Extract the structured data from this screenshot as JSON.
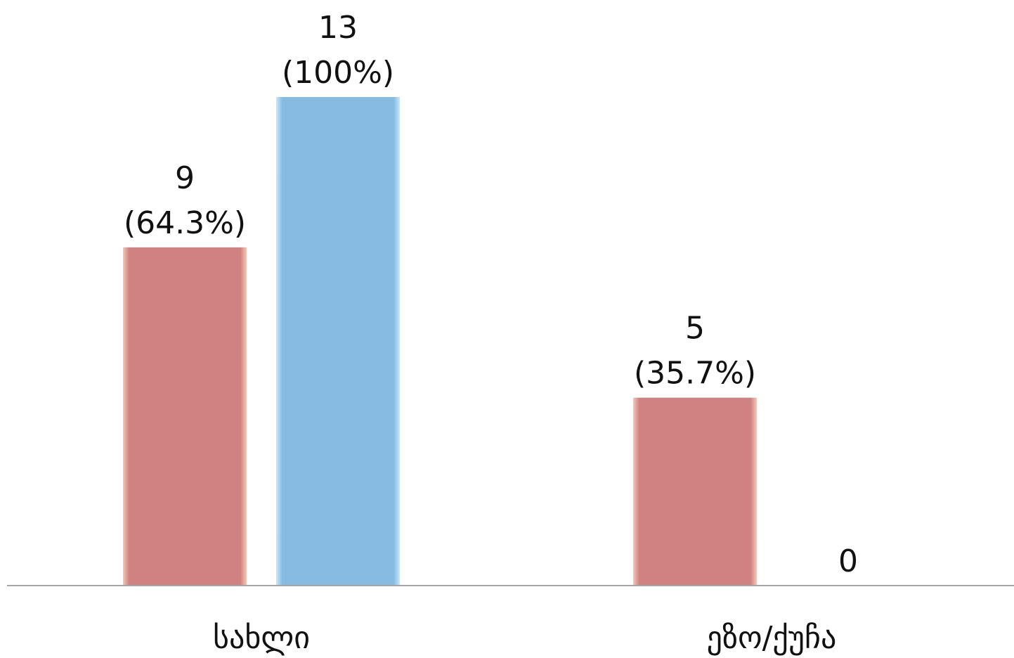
{
  "chart_data": {
    "type": "bar",
    "categories": [
      "სახლი",
      "ეზო/ქუჩა"
    ],
    "series": [
      {
        "values": [
          9,
          5
        ],
        "percents": [
          "64.3%",
          "35.7%"
        ],
        "color": "#d08282"
      },
      {
        "values": [
          13,
          0
        ],
        "percents": [
          "100%",
          ""
        ],
        "color": "#87bbe2"
      }
    ],
    "title": "",
    "xlabel": "",
    "ylabel": "",
    "ylim": [
      0,
      13
    ],
    "grid": false,
    "legend": "none",
    "axis_color": "#a6a6a6"
  }
}
